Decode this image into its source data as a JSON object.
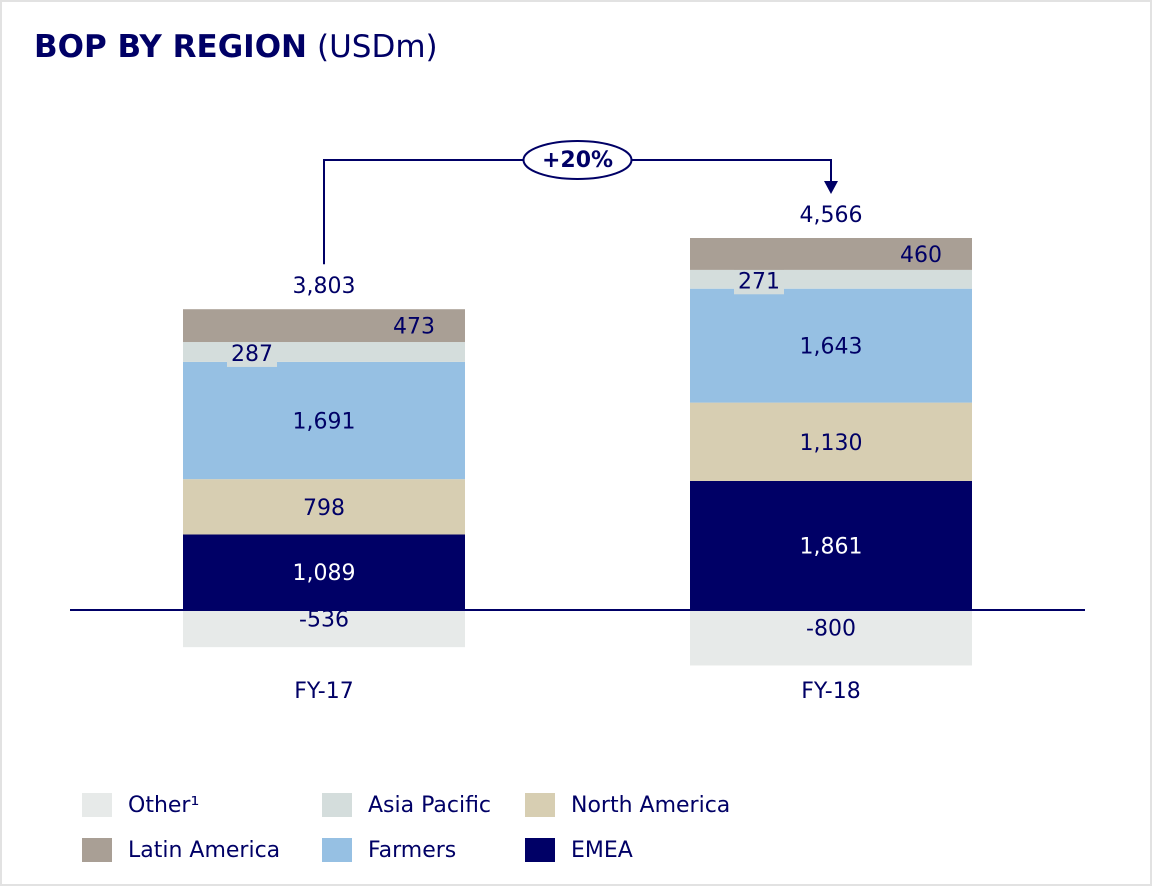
{
  "chart_data": {
    "type": "stacked_bar",
    "title": "BOP BY REGION",
    "unit": "(USDm)",
    "categories": [
      "FY-17",
      "FY-18"
    ],
    "series": [
      {
        "name": "EMEA",
        "color": "#000066",
        "values": [
          1089,
          1861
        ],
        "value_labels": [
          "1,089",
          "1,861"
        ]
      },
      {
        "name": "North America",
        "color": "#d7ceb2",
        "values": [
          798,
          1130
        ],
        "value_labels": [
          "798",
          "1,130"
        ]
      },
      {
        "name": "Farmers",
        "color": "#96c0e3",
        "values": [
          1691,
          1643
        ],
        "value_labels": [
          "1,691",
          "1,643"
        ]
      },
      {
        "name": "Asia Pacific",
        "color": "#d4dddc",
        "values": [
          287,
          271
        ],
        "value_labels": [
          "287",
          "271"
        ]
      },
      {
        "name": "Latin America",
        "color": "#a99f95",
        "values": [
          473,
          460
        ],
        "value_labels": [
          "473",
          "460"
        ]
      },
      {
        "name": "Other¹",
        "color": "#e7eae9",
        "values": [
          -536,
          -800
        ],
        "value_labels": [
          "-536",
          "-800"
        ]
      }
    ],
    "totals": [
      3803,
      4566
    ],
    "total_labels": [
      "3,803",
      "4,566"
    ],
    "annotation": "+20%"
  }
}
